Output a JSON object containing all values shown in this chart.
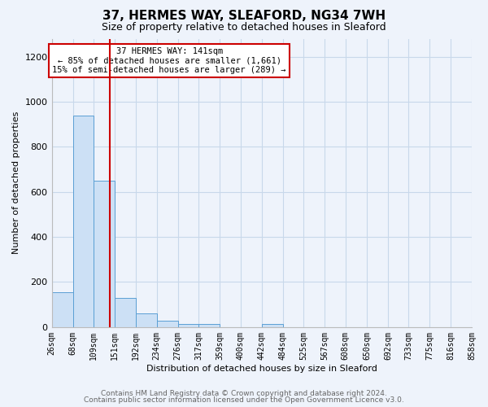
{
  "title": "37, HERMES WAY, SLEAFORD, NG34 7WH",
  "subtitle": "Size of property relative to detached houses in Sleaford",
  "xlabel": "Distribution of detached houses by size in Sleaford",
  "ylabel": "Number of detached properties",
  "footnote1": "Contains HM Land Registry data © Crown copyright and database right 2024.",
  "footnote2": "Contains public sector information licensed under the Open Government Licence v3.0.",
  "annotation_line1": "37 HERMES WAY: 141sqm",
  "annotation_line2": "← 85% of detached houses are smaller (1,661)",
  "annotation_line3": "15% of semi-detached houses are larger (289) →",
  "red_line_x": 141,
  "bin_edges": [
    26,
    68,
    109,
    151,
    192,
    234,
    276,
    317,
    359,
    400,
    442,
    484,
    525,
    567,
    608,
    650,
    692,
    733,
    775,
    816,
    858
  ],
  "bin_counts": [
    155,
    940,
    650,
    130,
    60,
    28,
    15,
    13,
    0,
    0,
    15,
    0,
    0,
    0,
    0,
    0,
    0,
    0,
    0,
    0
  ],
  "bar_color": "#cce0f5",
  "bar_edge_color": "#5a9fd4",
  "red_line_color": "#cc0000",
  "bg_color": "#eef3fb",
  "grid_color": "#c8d8ea",
  "ylim": [
    0,
    1280
  ],
  "yticks": [
    0,
    200,
    400,
    600,
    800,
    1000,
    1200
  ],
  "title_fontsize": 11,
  "subtitle_fontsize": 9,
  "ylabel_fontsize": 8,
  "tick_fontsize": 7,
  "annotation_fontsize": 7.5,
  "footnote_fontsize": 6.5
}
